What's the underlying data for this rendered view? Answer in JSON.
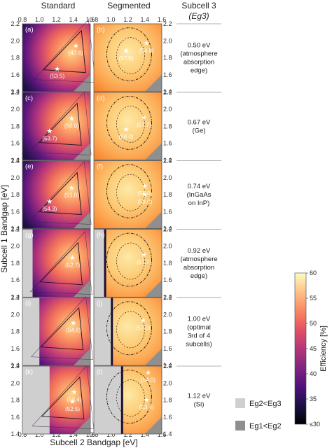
{
  "chart_data": {
    "type": "heatmap",
    "columns": [
      "Standard",
      "Segmented",
      "Subcell 3"
    ],
    "column3_symbol": "(Eg3)",
    "xlabel": "Subcell 2 Bandgap [eV]",
    "ylabel": "Subcell 1 Bandgap [eV]",
    "x_ticks": [
      "0.8",
      "1.0",
      "1.2",
      "1.4",
      "1.6"
    ],
    "y_ticks": [
      "1.4",
      "1.6",
      "1.8",
      "2.0",
      "2.2"
    ],
    "xlim": [
      0.8,
      1.6
    ],
    "ylim": [
      1.4,
      2.2
    ],
    "rows": [
      {
        "eg3": 0.5,
        "caption": [
          "0.50 eV",
          "(atmosphere",
          "absorption",
          "edge)"
        ],
        "standard": {
          "label": "(a)",
          "max_label": "(47.6)",
          "max_x": 1.43,
          "max_y": 1.94,
          "alt_label": "(53.5)",
          "alt_x": 1.21,
          "alt_y": 1.67,
          "excluded": "Eg1<Eg2",
          "eg1_lt_eg2": true,
          "eg2_lt_eg3_cut": null
        },
        "segmented": {
          "label": "(b)",
          "max_label": "(57.0)",
          "max_x": 1.18,
          "max_y": 1.88,
          "alt_label": "(54.8)",
          "alt_x": 1.42,
          "alt_y": 1.97,
          "eg2_lt_eg3_cut": null
        }
      },
      {
        "eg3": 0.67,
        "caption": [
          "0.67 eV",
          "(Ge)"
        ],
        "standard": {
          "label": "(c)",
          "max_label": "(50.0)",
          "max_x": 1.38,
          "max_y": 1.89,
          "alt_label": "(53.7)",
          "alt_x": 1.12,
          "alt_y": 1.74,
          "eg2_lt_eg3_cut": null
        },
        "segmented": {
          "label": "(d)",
          "max_label": "(58.0)",
          "max_x": 1.18,
          "max_y": 1.76,
          "alt_label": "(57.7)",
          "alt_x": 1.39,
          "alt_y": 1.9,
          "eg2_lt_eg3_cut": null
        }
      },
      {
        "eg3": 0.74,
        "caption": [
          "0.74 eV",
          "(InGaAs",
          "on InP)"
        ],
        "standard": {
          "label": "(e)",
          "max_label": "(51.0)",
          "max_x": 1.38,
          "max_y": 1.88,
          "alt_label": "(54.3)",
          "alt_x": 1.12,
          "alt_y": 1.72,
          "eg2_lt_eg3_cut": null
        },
        "segmented": {
          "label": "(f)",
          "max_label": "(58.0)",
          "max_x": 1.4,
          "max_y": 1.9,
          "alt_label": "(58.0)",
          "alt_x": 1.4,
          "alt_y": 1.8,
          "eg2_lt_eg3_cut": null
        }
      },
      {
        "eg3": 0.92,
        "caption": [
          "0.92 eV",
          "(atmosphere",
          "absorption",
          "edge)"
        ],
        "standard": {
          "label": "(g)",
          "max_label": "(52.7)",
          "max_x": 1.39,
          "max_y": 1.86,
          "alt_label": "",
          "alt_x": null,
          "alt_y": null,
          "eg2_lt_eg3_cut": 0.92
        },
        "segmented": {
          "label": "(h)",
          "max_label": "(57.7)",
          "max_x": 1.39,
          "max_y": 1.9,
          "alt_label": "",
          "alt_x": null,
          "alt_y": null,
          "eg2_lt_eg3_cut": 0.92
        }
      },
      {
        "eg3": 1.0,
        "caption": [
          "1.00 eV",
          "(optimal",
          "3rd of 4",
          "subcells)"
        ],
        "standard": {
          "label": "(i)",
          "max_label": "(54.6)",
          "max_x": 1.4,
          "max_y": 1.9,
          "alt_label": "",
          "alt_x": null,
          "alt_y": null,
          "eg2_lt_eg3_cut": 1.0
        },
        "segmented": {
          "label": "(j)",
          "max_label": "(57.0)",
          "max_x": 1.38,
          "max_y": 1.93,
          "alt_label": "",
          "alt_x": null,
          "alt_y": null,
          "eg2_lt_eg3_cut": 1.0
        }
      },
      {
        "eg3": 1.12,
        "caption": [
          "1.12 eV",
          "(Si)"
        ],
        "standard": {
          "label": "(k)",
          "max_label": "(53.4)",
          "max_x": 1.41,
          "max_y": 1.89,
          "alt_label": "(52.5)",
          "alt_x": 1.39,
          "alt_y": 1.78,
          "eg2_lt_eg3_cut": 1.12
        },
        "segmented": {
          "label": "(l)",
          "max_label": "(54.0)",
          "max_x": 1.44,
          "max_y": 2.12,
          "alt_label": "(53.4)",
          "alt_x": 1.42,
          "alt_y": 1.8,
          "eg2_lt_eg3_cut": 1.12
        }
      }
    ],
    "legend": [
      {
        "label": "Eg2<Eg3",
        "color": "#cfcfcf"
      },
      {
        "label": "Eg1<Eg2",
        "color": "#8f8f8f"
      }
    ],
    "colorbar": {
      "label": "Efficiency [%]",
      "min": 30,
      "max": 60,
      "ticks": [
        "60",
        "55",
        "50",
        "45",
        "40",
        "35",
        "≤30"
      ],
      "colors": [
        "#000004",
        "#1c1044",
        "#4f127b",
        "#812581",
        "#b5367a",
        "#e55064",
        "#fb8761",
        "#fec287",
        "#fcfdbf"
      ]
    }
  }
}
